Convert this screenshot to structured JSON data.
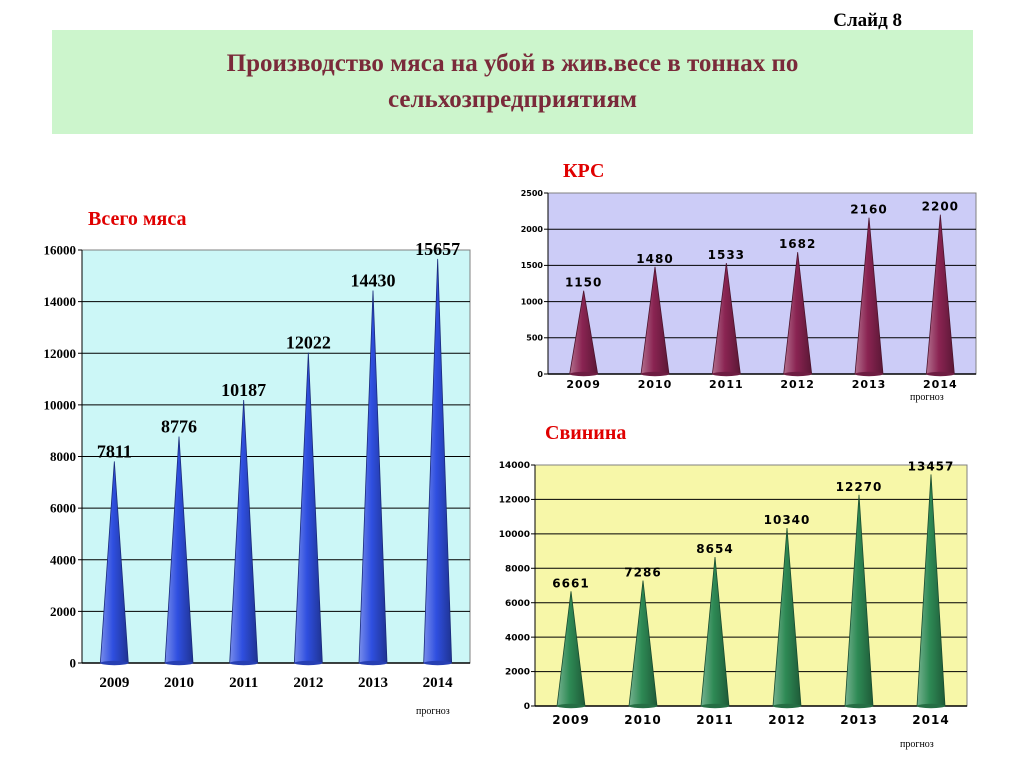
{
  "slide_label": "Слайд 8",
  "title": "Производство мяса на убой в жив.весе в тоннах по сельхозпредприятиям",
  "colors": {
    "title_bg": "#ccf5cc",
    "title_text": "#7a2a3a",
    "chart_title": "#e00000"
  },
  "chart_data": [
    {
      "type": "bar",
      "title": "Всего мяса",
      "categories": [
        "2009",
        "2010",
        "2011",
        "2012",
        "2013",
        "2014"
      ],
      "values": [
        7811,
        8776,
        10187,
        12022,
        14430,
        15657
      ],
      "ylim": [
        0,
        16000
      ],
      "yticks": [
        "0",
        "2000",
        "4000",
        "6000",
        "8000",
        "10000",
        "12000",
        "14000",
        "16000"
      ],
      "note": "прогноз",
      "bar_shape": "cone",
      "bar_color": "#2f4fe0",
      "plot_bg": "#ccf7f7",
      "grid": true
    },
    {
      "type": "bar",
      "title": "КРС",
      "categories": [
        "2009",
        "2010",
        "2011",
        "2012",
        "2013",
        "2014"
      ],
      "values": [
        1150,
        1480,
        1533,
        1682,
        2160,
        2200
      ],
      "ylim": [
        0,
        2500
      ],
      "yticks": [
        "0",
        "500",
        "1000",
        "1500",
        "2000",
        "2500"
      ],
      "note": "прогноз",
      "bar_shape": "cone",
      "bar_color": "#8a2452",
      "plot_bg": "#ccccf7",
      "grid": true
    },
    {
      "type": "bar",
      "title": "Свинина",
      "categories": [
        "2009",
        "2010",
        "2011",
        "2012",
        "2013",
        "2014"
      ],
      "values": [
        6661,
        7286,
        8654,
        10340,
        12270,
        13457
      ],
      "ylim": [
        0,
        14000
      ],
      "yticks": [
        "0",
        "2000",
        "4000",
        "6000",
        "8000",
        "10000",
        "12000",
        "14000"
      ],
      "note": "прогноз",
      "bar_shape": "cone",
      "bar_color": "#2e8a55",
      "plot_bg": "#f7f7a8",
      "grid": true
    }
  ]
}
